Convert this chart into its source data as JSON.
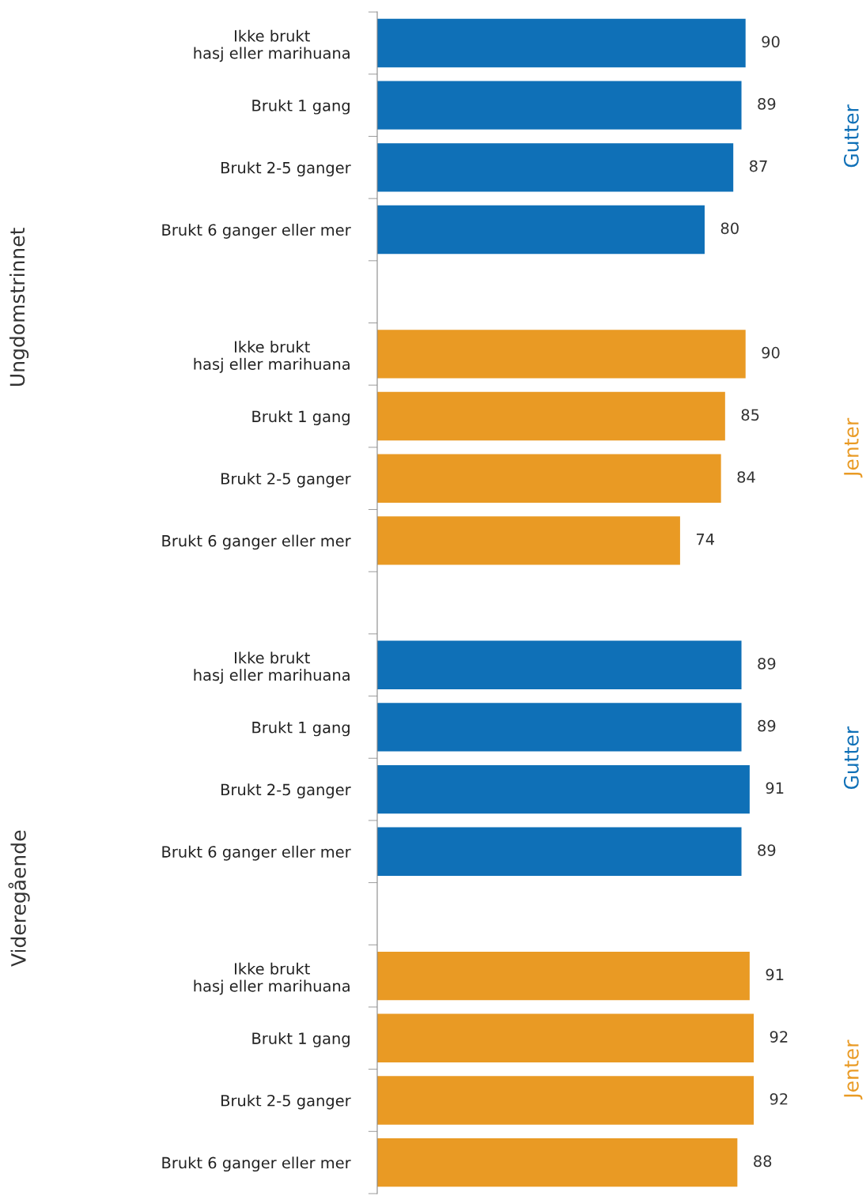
{
  "chart_data": {
    "type": "bar",
    "orientation": "horizontal",
    "data_labels": true,
    "grid": false,
    "categories": [
      "Ikke brukt\nhasj eller marihuana",
      "Brukt 1 gang",
      "Brukt 2-5 ganger",
      "Brukt 6 ganger eller mer",
      null,
      "Ikke brukt\nhasj eller marihuana",
      "Brukt 1 gang",
      "Brukt 2-5 ganger",
      "Brukt 6 ganger eller mer",
      null,
      "Ikke brukt\nhasj eller marihuana",
      "Brukt 1 gang",
      "Brukt 2-5 ganger",
      "Brukt 6 ganger eller mer",
      null,
      "Ikke brukt\nhasj eller marihuana",
      "Brukt 1 gang",
      "Brukt 2-5 ganger",
      "Brukt 6 ganger eller mer"
    ],
    "series": [
      {
        "name": "Gutter",
        "color": "#0f70b7",
        "values": [
          90,
          89,
          87,
          80,
          null,
          null,
          null,
          null,
          null,
          null,
          89,
          89,
          91,
          89,
          null,
          null,
          null,
          null,
          null
        ]
      },
      {
        "name": "Jenter",
        "color": "#e99a24",
        "values": [
          null,
          null,
          null,
          null,
          null,
          90,
          85,
          84,
          74,
          null,
          null,
          null,
          null,
          null,
          null,
          91,
          92,
          92,
          88
        ]
      }
    ],
    "annotations": [
      "Ungdomstrinnet",
      "Videregående"
    ]
  }
}
